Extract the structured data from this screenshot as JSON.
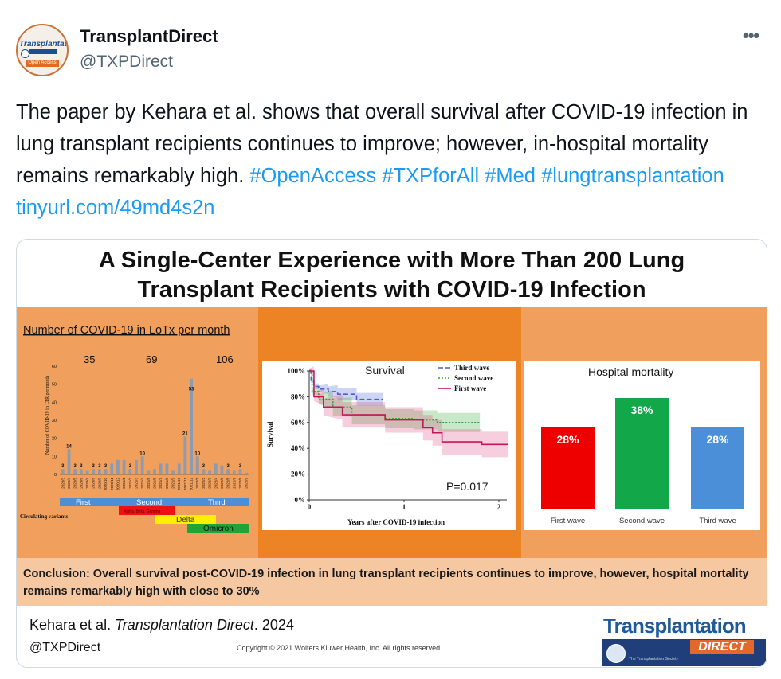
{
  "tweet": {
    "display_name": "TransplantDirect",
    "handle": "@TXPDirect",
    "more_label": "•••",
    "avatar": {
      "line1": "Transplantation",
      "line2": "Open Access"
    },
    "text": "The paper by Kehara et al. shows that overall survival after COVID-19 infection in lung transplant recipients continues to improve; however, in-hospital mortality remains remarkably high.",
    "hashtags": [
      "#OpenAccess",
      "#TXPforAll",
      "#Med",
      "#lungtransplantation"
    ],
    "link": "tinyurl.com/49md4s2n"
  },
  "card": {
    "title_line1": "A Single-Center Experience with More Than 200 Lung",
    "title_line2": "Transplant Recipients with COVID-19 Infection",
    "conclusion": "Conclusion: Overall survival post-COVID-19 infection in lung transplant recipients continues to improve, however, hospital mortality remains remarkably high with close to 30%",
    "citation_authors": "Kehara et al.",
    "citation_journal": "Transplantation Direct",
    "citation_year": ". 2024",
    "handle": "@TXPDirect",
    "copyright": "Copyright © 2021  Wolters Kluwer Health, Inc. All rights reserved",
    "logo_title": "Transplantation",
    "logo_sub": "DIRECT",
    "logo_society": "The Transplantation Society",
    "colors": {
      "accent": "#1d9bf0",
      "orange": "#ec8426",
      "light_orange": "#f0a05c",
      "conclusion_bg": "#f6c8a2"
    }
  },
  "chart_data": [
    {
      "type": "bar",
      "title": "Number of COVID-19 in LoTx per month",
      "ylabel": "Number of COVID-19 in LTR per month",
      "ylim": [
        0,
        60
      ],
      "yticks": [
        0,
        10,
        20,
        30,
        40,
        50,
        60
      ],
      "categories": [
        "2020/3",
        "2020/4",
        "2020/5",
        "2020/6",
        "2020/7",
        "2020/8",
        "2020/9",
        "2020/10",
        "2020/11",
        "2020/12",
        "2021/1",
        "2021/2",
        "2021/3",
        "2021/4",
        "2021/5",
        "2021/6",
        "2021/7",
        "2021/8",
        "2021/9",
        "2021/10",
        "2021/11",
        "2021/12",
        "2022/1",
        "2022/2",
        "2022/3",
        "2022/4",
        "2022/5",
        "2022/6",
        "2022/7",
        "2022/8",
        "2022/9"
      ],
      "values": [
        3,
        14,
        3,
        3,
        2,
        3,
        3,
        3,
        6,
        8,
        8,
        3,
        8,
        10,
        2,
        3,
        6,
        6,
        2,
        6,
        21,
        53,
        10,
        3,
        2,
        6,
        5,
        3,
        2,
        3,
        1
      ],
      "data_labels": [
        {
          "index": 0,
          "text": "3"
        },
        {
          "index": 1,
          "text": "14"
        },
        {
          "index": 2,
          "text": "3"
        },
        {
          "index": 3,
          "text": "3"
        },
        {
          "index": 5,
          "text": "3"
        },
        {
          "index": 6,
          "text": "3"
        },
        {
          "index": 7,
          "text": "3"
        },
        {
          "index": 11,
          "text": "3"
        },
        {
          "index": 13,
          "text": "10"
        },
        {
          "index": 20,
          "text": "21"
        },
        {
          "index": 21,
          "text": "53"
        },
        {
          "index": 22,
          "text": "10"
        },
        {
          "index": 23,
          "text": "3"
        },
        {
          "index": 27,
          "text": "3"
        },
        {
          "index": 29,
          "text": "3"
        }
      ],
      "wave_totals": [
        "35",
        "69",
        "106"
      ],
      "waves": [
        "First",
        "Second",
        "Third"
      ],
      "variants_label": "Circulating variants",
      "variants": [
        "Alpha, Beta, Gamma",
        "Delta",
        "Omicron"
      ]
    },
    {
      "type": "line",
      "title": "Survival",
      "xlabel": "Years after COVID-19 infection",
      "ylabel": "Survival",
      "xlim": [
        0,
        2
      ],
      "ylim": [
        0,
        100
      ],
      "xticks": [
        "0",
        "1",
        "2"
      ],
      "yticks": [
        "0%",
        "20%",
        "40%",
        "60%",
        "80%",
        "100%"
      ],
      "annotation": "P=0.017",
      "series": [
        {
          "name": "Third wave",
          "color": "#4a5fc9",
          "dash": "dash",
          "x": [
            0,
            0.02,
            0.05,
            0.1,
            0.2,
            0.3,
            0.5,
            0.78
          ],
          "y": [
            100,
            92,
            88,
            86,
            84,
            82,
            78,
            78
          ]
        },
        {
          "name": "Second wave",
          "color": "#3a9a3a",
          "dash": "dot",
          "x": [
            0,
            0.03,
            0.1,
            0.25,
            0.45,
            0.8,
            1.1,
            1.35,
            1.8
          ],
          "y": [
            100,
            84,
            78,
            72,
            66,
            63,
            62,
            60,
            60
          ]
        },
        {
          "name": "First wave",
          "color": "#c2185b",
          "dash": "solid",
          "x": [
            0,
            0.05,
            0.15,
            0.35,
            0.8,
            1.2,
            1.3,
            1.4,
            1.82,
            2.1
          ],
          "y": [
            100,
            80,
            72,
            66,
            62,
            56,
            52,
            45,
            43,
            43
          ]
        }
      ]
    },
    {
      "type": "bar",
      "title": "Hospital mortality",
      "categories": [
        "First wave",
        "Second wave",
        "Third wave"
      ],
      "values": [
        28,
        38,
        28
      ],
      "data_labels": [
        "28%",
        "38%",
        "28%"
      ],
      "colors": [
        "#ee0000",
        "#12a84a",
        "#4a8fd8"
      ]
    }
  ]
}
